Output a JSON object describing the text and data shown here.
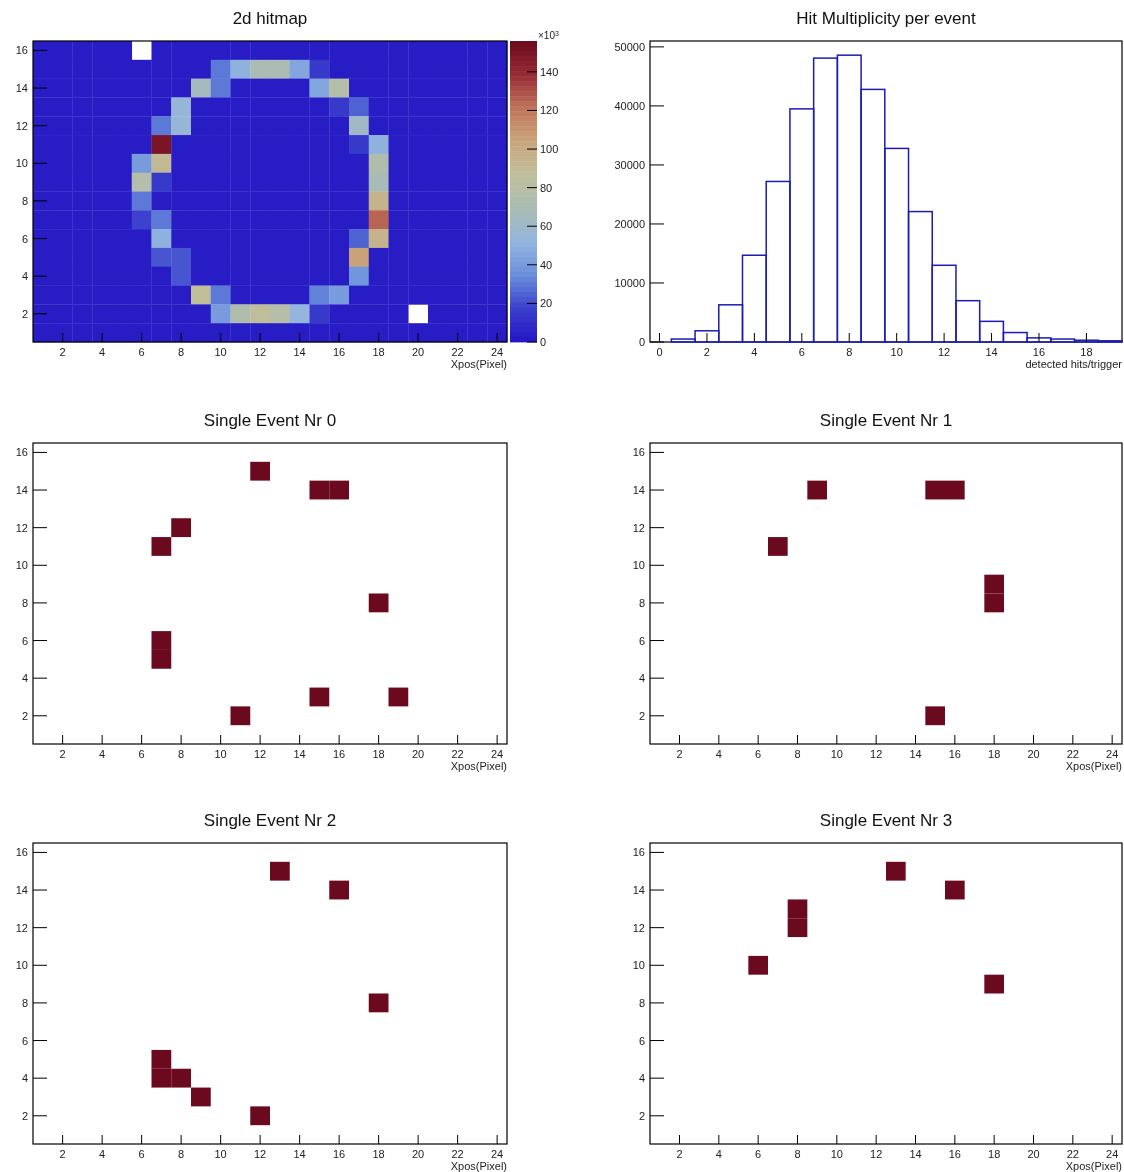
{
  "chart_data": [
    {
      "type": "heatmap",
      "title": "2d hitmap",
      "xlabel": "Xpos(Pixel)",
      "clabel": "×10$^{3}$",
      "x": [
        1,
        2,
        3,
        4,
        5,
        6,
        7,
        8,
        9,
        10,
        11,
        12,
        13,
        14,
        15,
        16,
        17,
        18,
        19,
        20,
        21,
        22,
        23,
        24
      ],
      "xlim": [
        0.5,
        24.5
      ],
      "xticks": [
        2,
        4,
        6,
        8,
        10,
        12,
        14,
        16,
        18,
        20,
        22,
        24
      ],
      "y_categories": [
        "16",
        null,
        "14",
        null,
        "12",
        null,
        "10",
        null,
        "8",
        null,
        "6",
        null,
        "4",
        null,
        "2",
        null
      ],
      "cells": [
        [
          3,
          3,
          3,
          3,
          3,
          null,
          3,
          3,
          3,
          3,
          3,
          3,
          3,
          3,
          3,
          3,
          3,
          3,
          3,
          3,
          3,
          3,
          3,
          3
        ],
        [
          3,
          3,
          3,
          3,
          3,
          3,
          3,
          3,
          3,
          30,
          50,
          70,
          70,
          45,
          15,
          3,
          3,
          3,
          3,
          3,
          3,
          3,
          3,
          3
        ],
        [
          3,
          3,
          3,
          3,
          3,
          3,
          3,
          3,
          65,
          30,
          3,
          3,
          3,
          3,
          45,
          78,
          3,
          3,
          3,
          3,
          3,
          3,
          3,
          3
        ],
        [
          3,
          3,
          3,
          3,
          3,
          3,
          3,
          55,
          3,
          3,
          3,
          3,
          3,
          3,
          3,
          15,
          25,
          3,
          3,
          3,
          3,
          3,
          3,
          3
        ],
        [
          3,
          3,
          3,
          3,
          3,
          3,
          30,
          55,
          3,
          3,
          3,
          3,
          3,
          3,
          3,
          3,
          62,
          3,
          3,
          3,
          3,
          3,
          3,
          3
        ],
        [
          3,
          3,
          3,
          3,
          3,
          3,
          150,
          3,
          3,
          3,
          3,
          3,
          3,
          3,
          3,
          3,
          15,
          50,
          3,
          3,
          3,
          3,
          3,
          3
        ],
        [
          3,
          3,
          3,
          3,
          3,
          40,
          90,
          3,
          3,
          3,
          3,
          3,
          3,
          3,
          3,
          3,
          3,
          75,
          3,
          3,
          3,
          3,
          3,
          3
        ],
        [
          3,
          3,
          3,
          3,
          3,
          78,
          15,
          3,
          3,
          3,
          3,
          3,
          3,
          3,
          3,
          3,
          3,
          68,
          3,
          3,
          3,
          3,
          3,
          3
        ],
        [
          3,
          3,
          3,
          3,
          3,
          30,
          3,
          3,
          3,
          3,
          3,
          3,
          3,
          3,
          3,
          3,
          3,
          95,
          3,
          3,
          3,
          3,
          3,
          3
        ],
        [
          3,
          3,
          3,
          3,
          3,
          18,
          30,
          3,
          3,
          3,
          3,
          3,
          3,
          3,
          3,
          3,
          3,
          125,
          3,
          3,
          3,
          3,
          3,
          3
        ],
        [
          3,
          3,
          3,
          3,
          3,
          3,
          50,
          3,
          3,
          3,
          3,
          3,
          3,
          3,
          3,
          3,
          25,
          95,
          3,
          3,
          3,
          3,
          3,
          3
        ],
        [
          3,
          3,
          3,
          3,
          3,
          3,
          22,
          22,
          3,
          3,
          3,
          3,
          3,
          3,
          3,
          3,
          105,
          3,
          3,
          3,
          3,
          3,
          3,
          3
        ],
        [
          3,
          3,
          3,
          3,
          3,
          3,
          3,
          22,
          3,
          3,
          3,
          3,
          3,
          3,
          3,
          3,
          38,
          3,
          3,
          3,
          3,
          3,
          3,
          3
        ],
        [
          3,
          3,
          3,
          3,
          3,
          3,
          3,
          3,
          88,
          30,
          3,
          3,
          3,
          3,
          32,
          40,
          3,
          3,
          3,
          3,
          3,
          3,
          3,
          3
        ],
        [
          3,
          3,
          3,
          3,
          3,
          3,
          3,
          3,
          3,
          40,
          75,
          88,
          78,
          52,
          15,
          3,
          3,
          3,
          3,
          null,
          3,
          3,
          3,
          3
        ],
        [
          3,
          3,
          3,
          3,
          3,
          3,
          3,
          3,
          3,
          3,
          3,
          3,
          3,
          3,
          3,
          3,
          3,
          3,
          3,
          3,
          3,
          3,
          3,
          3
        ]
      ],
      "clim": [
        0,
        156
      ],
      "cticks": [
        0,
        20,
        40,
        60,
        80,
        100,
        120,
        140
      ]
    },
    {
      "type": "histogram",
      "title": "Hit Multiplicity per event",
      "xlabel": "detected hits/trigger",
      "color": "#1c1cb4",
      "bins": [
        0.5,
        1.5,
        2.5,
        3.5,
        4.5,
        5.5,
        6.5,
        7.5,
        8.5,
        9.5,
        10.5,
        11.5,
        12.5,
        13.5,
        14.5,
        15.5,
        16.5,
        17.5,
        18.5,
        19.5
      ],
      "values": [
        500,
        1900,
        6300,
        14700,
        27200,
        39500,
        48100,
        48600,
        42800,
        32800,
        22100,
        13000,
        7000,
        3500,
        1600,
        700,
        500,
        300,
        200
      ],
      "xlim": [
        -0.4,
        19.5
      ],
      "xticks": [
        0,
        2,
        4,
        6,
        8,
        10,
        12,
        14,
        16,
        18
      ],
      "ylim": [
        0,
        51000
      ],
      "yticks": [
        0,
        10000,
        20000,
        30000,
        40000,
        50000
      ]
    },
    {
      "type": "scatter",
      "title": "Single Event Nr 0",
      "xlabel": "Xpos(Pixel)",
      "marker": "square",
      "color": "#6b0a1e",
      "x": [
        12,
        15,
        16,
        8,
        7,
        18,
        7,
        7,
        15,
        19,
        11
      ],
      "values": [
        15,
        14,
        14,
        12,
        11,
        8,
        6,
        5,
        3,
        3,
        2
      ],
      "xlim": [
        0.5,
        24.5
      ],
      "xticks": [
        2,
        4,
        6,
        8,
        10,
        12,
        14,
        16,
        18,
        20,
        22,
        24
      ],
      "ylim": [
        0.5,
        16.5
      ],
      "yticks": [
        2,
        4,
        6,
        8,
        10,
        12,
        14,
        16
      ]
    },
    {
      "type": "scatter",
      "title": "Single Event Nr 1",
      "xlabel": "Xpos(Pixel)",
      "marker": "square",
      "color": "#6b0a1e",
      "x": [
        9,
        15,
        16,
        7,
        18,
        18,
        15
      ],
      "values": [
        14,
        14,
        14,
        11,
        9,
        8,
        2
      ],
      "xlim": [
        0.5,
        24.5
      ],
      "xticks": [
        2,
        4,
        6,
        8,
        10,
        12,
        14,
        16,
        18,
        20,
        22,
        24
      ],
      "ylim": [
        0.5,
        16.5
      ],
      "yticks": [
        2,
        4,
        6,
        8,
        10,
        12,
        14,
        16
      ]
    },
    {
      "type": "scatter",
      "title": "Single Event Nr 2",
      "xlabel": "Xpos(Pixel)",
      "marker": "square",
      "color": "#6b0a1e",
      "x": [
        13,
        16,
        18,
        7,
        7,
        8,
        9,
        12
      ],
      "values": [
        15,
        14,
        8,
        5,
        4,
        4,
        3,
        2
      ],
      "xlim": [
        0.5,
        24.5
      ],
      "xticks": [
        2,
        4,
        6,
        8,
        10,
        12,
        14,
        16,
        18,
        20,
        22,
        24
      ],
      "ylim": [
        0.5,
        16.5
      ],
      "yticks": [
        2,
        4,
        6,
        8,
        10,
        12,
        14,
        16
      ]
    },
    {
      "type": "scatter",
      "title": "Single Event Nr 3",
      "xlabel": "Xpos(Pixel)",
      "marker": "square",
      "color": "#6b0a1e",
      "x": [
        13,
        16,
        8,
        8,
        6,
        18
      ],
      "values": [
        15,
        14,
        13,
        12,
        10,
        9
      ],
      "xlim": [
        0.5,
        24.5
      ],
      "xticks": [
        2,
        4,
        6,
        8,
        10,
        12,
        14,
        16,
        18,
        20,
        22,
        24
      ],
      "ylim": [
        0.5,
        16.5
      ],
      "yticks": [
        2,
        4,
        6,
        8,
        10,
        12,
        14,
        16
      ]
    }
  ]
}
